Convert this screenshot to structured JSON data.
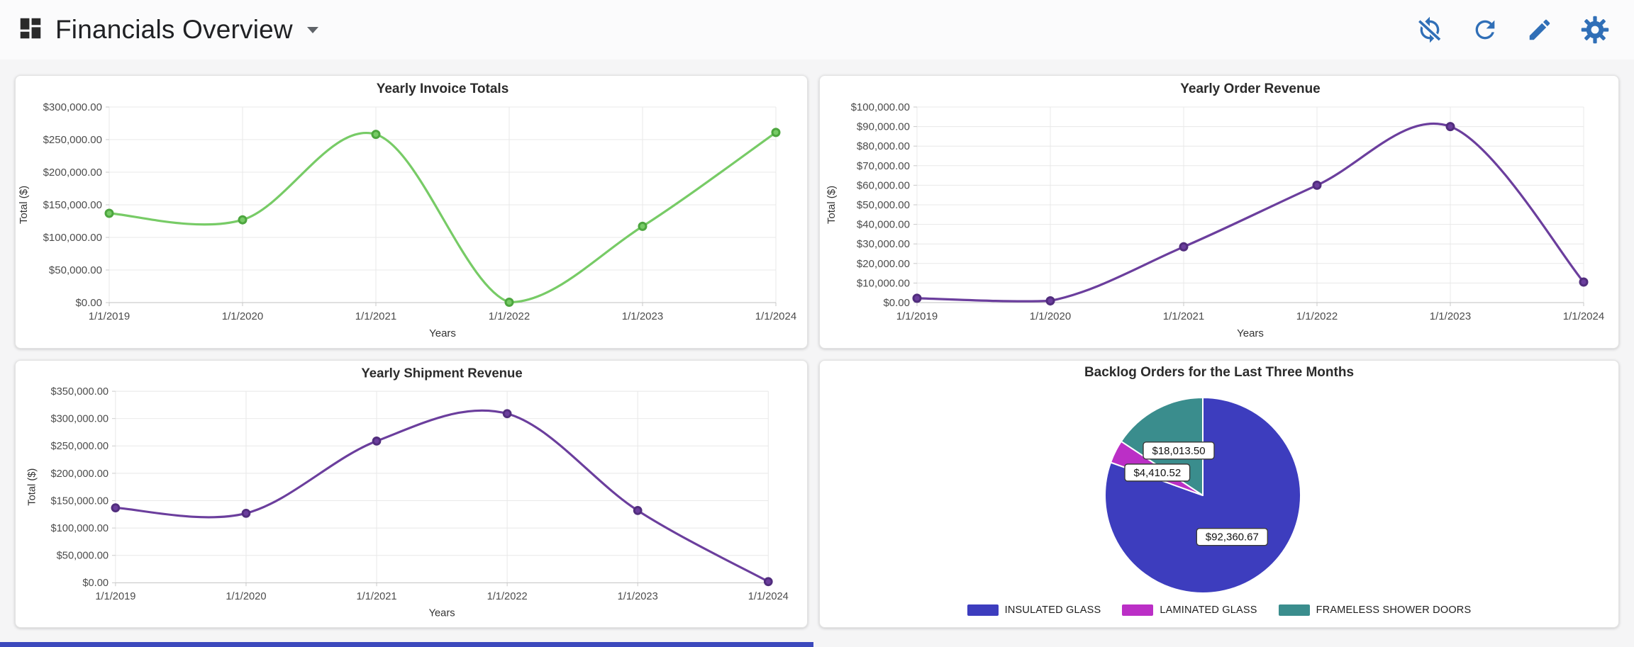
{
  "header": {
    "title": "Financials Overview",
    "actions": [
      {
        "icon": "sync-disabled-icon"
      },
      {
        "icon": "refresh-icon"
      },
      {
        "icon": "edit-icon"
      },
      {
        "icon": "settings-icon"
      }
    ]
  },
  "colors": {
    "action_icon_blue": "#306fb7",
    "invoice_line_green": "#77cb66",
    "revenue_line_purple": "#6b3e9d",
    "pie_insulated_indigo": "#3d3dbe",
    "pie_laminated_magenta": "#bb2fc6",
    "pie_frameless_teal": "#3a8d8d",
    "scrollbar_blue": "#3c49bd"
  },
  "chart_data": [
    {
      "type": "line",
      "title": "Yearly Invoice Totals",
      "xlabel": "Years",
      "ylabel": "Total ($)",
      "categories": [
        "1/1/2019",
        "1/1/2020",
        "1/1/2021",
        "1/1/2022",
        "1/1/2023",
        "1/1/2024"
      ],
      "values": [
        137000,
        127000,
        258000,
        500,
        117000,
        261000
      ],
      "ylim": [
        0,
        300000
      ],
      "ytick_step": 50000,
      "grid": true,
      "line_color": "#77cb66",
      "point_color": "#4da63f"
    },
    {
      "type": "line",
      "title": "Yearly Order Revenue",
      "xlabel": "Years",
      "ylabel": "Total ($)",
      "categories": [
        "1/1/2019",
        "1/1/2020",
        "1/1/2021",
        "1/1/2022",
        "1/1/2023",
        "1/1/2024"
      ],
      "values": [
        2200,
        900,
        28500,
        60000,
        90000,
        10500
      ],
      "ylim": [
        0,
        100000
      ],
      "ytick_step": 10000,
      "grid": true,
      "line_color": "#6b3e9d",
      "point_color": "#512d7d"
    },
    {
      "type": "line",
      "title": "Yearly Shipment Revenue",
      "xlabel": "Years",
      "ylabel": "Total ($)",
      "categories": [
        "1/1/2019",
        "1/1/2020",
        "1/1/2021",
        "1/1/2022",
        "1/1/2023",
        "1/1/2024"
      ],
      "values": [
        137000,
        127000,
        259000,
        309000,
        132000,
        2000
      ],
      "ylim": [
        0,
        350000
      ],
      "ytick_step": 50000,
      "grid": true,
      "line_color": "#6b3e9d",
      "point_color": "#512d7d"
    },
    {
      "type": "pie",
      "title": "Backlog Orders for the Last Three Months",
      "categories": [
        "INSULATED GLASS",
        "LAMINATED GLASS",
        "FRAMELESS SHOWER DOORS"
      ],
      "values": [
        92360.67,
        4410.52,
        18013.5
      ],
      "labels": [
        "$92,360.67",
        "$4,410.52",
        "$18,013.50"
      ],
      "colors": [
        "#3d3dbe",
        "#bb2fc6",
        "#3a8d8d"
      ],
      "legend_position": "bottom"
    }
  ]
}
